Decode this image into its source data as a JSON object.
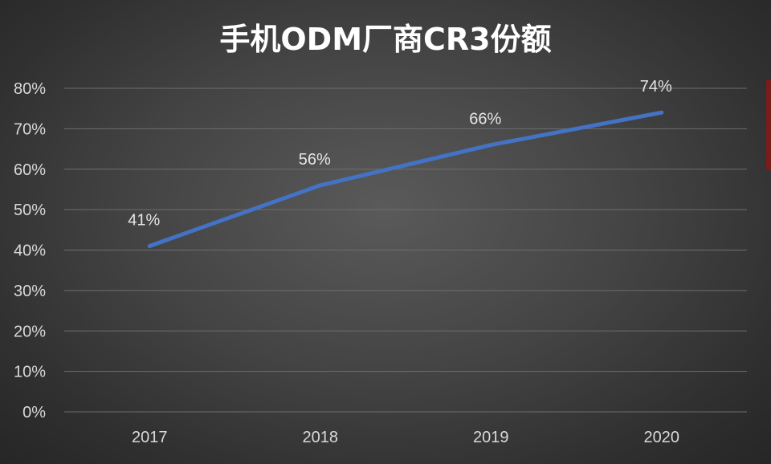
{
  "chart_data": {
    "type": "line",
    "title": "手机ODM厂商CR3份额",
    "categories": [
      "2017",
      "2018",
      "2019",
      "2020"
    ],
    "series": [
      {
        "name": "CR3",
        "values": [
          41,
          56,
          66,
          74
        ],
        "labels": [
          "41%",
          "56%",
          "66%",
          "74%"
        ],
        "color": "#4472c4"
      }
    ],
    "ylim": [
      0,
      80
    ],
    "yticks": [
      0,
      10,
      20,
      30,
      40,
      50,
      60,
      70,
      80
    ],
    "ytick_labels": [
      "0%",
      "10%",
      "20%",
      "30%",
      "40%",
      "50%",
      "60%",
      "70%",
      "80%"
    ],
    "xlabel": "",
    "ylabel": "",
    "grid": true,
    "legend": "none"
  }
}
